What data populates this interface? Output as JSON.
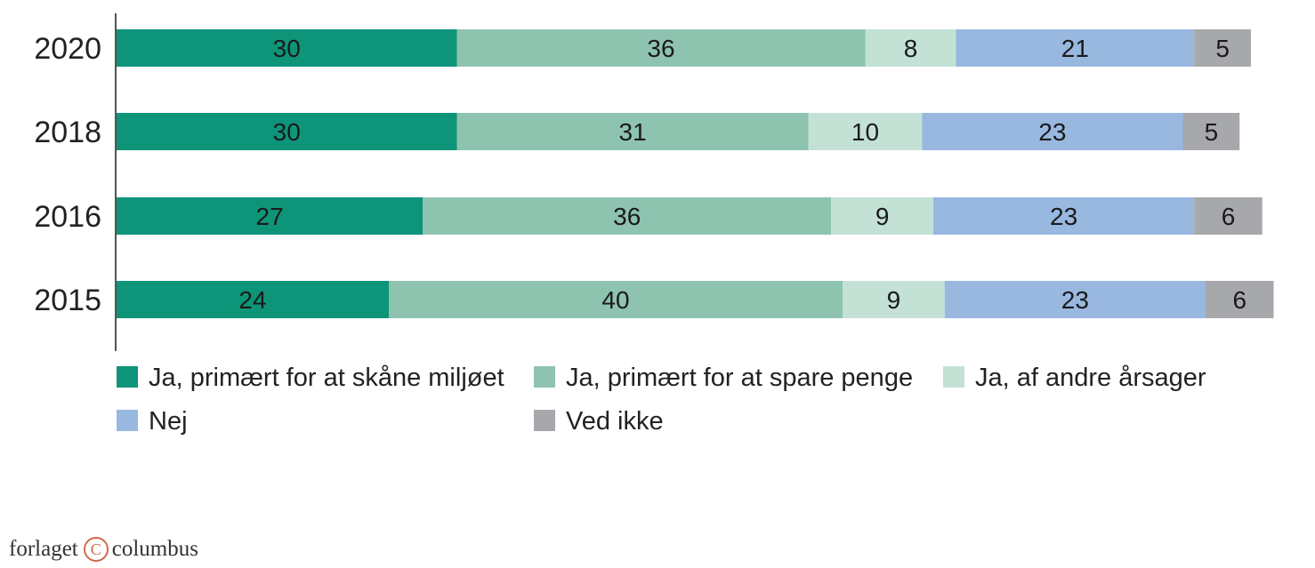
{
  "chart_data": {
    "type": "bar",
    "orientation": "horizontal",
    "stacked": true,
    "categories": [
      "2020",
      "2018",
      "2016",
      "2015"
    ],
    "series": [
      {
        "name": "Ja, primært for at skåne miljøet",
        "color": "#0e9579",
        "values": [
          30,
          30,
          27,
          24
        ]
      },
      {
        "name": "Ja, primært for at spare penge",
        "color": "#8ec3b0",
        "values": [
          36,
          31,
          36,
          40
        ]
      },
      {
        "name": "Ja, af andre årsager",
        "color": "#c4e1d5",
        "values": [
          8,
          10,
          9,
          9
        ]
      },
      {
        "name": "Nej",
        "color": "#98b8e0",
        "values": [
          21,
          23,
          23,
          23
        ]
      },
      {
        "name": "Ved ikke",
        "color": "#a7a8ab",
        "values": [
          5,
          5,
          6,
          6
        ]
      }
    ],
    "legend_position": "bottom",
    "grid": false
  },
  "footer": {
    "publisher_left": "forlaget",
    "publisher_symbol": "C",
    "publisher_right": "columbus"
  }
}
